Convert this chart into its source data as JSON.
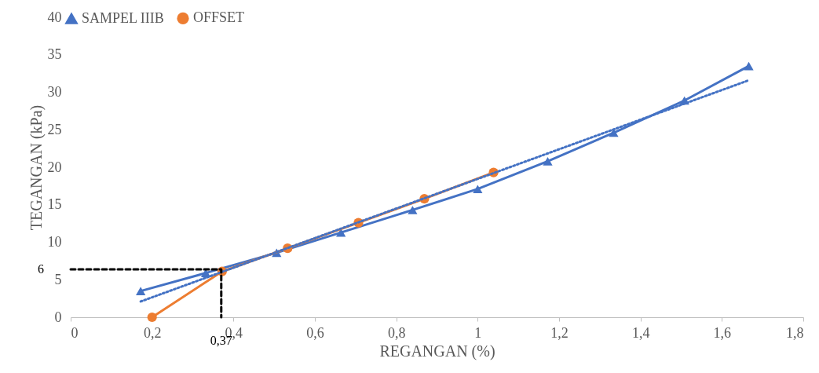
{
  "chart_data": {
    "type": "line",
    "xlabel": "REGANGAN (%)",
    "ylabel": "TEGANGAN (kPa)",
    "xlim": [
      0,
      1.8
    ],
    "xticks": [
      0,
      {
        "value": 0.2,
        "label": "0,2"
      },
      {
        "value": 0.4,
        "label": "0,4"
      },
      {
        "value": 0.6,
        "label": "0,6"
      },
      {
        "value": 0.8,
        "label": "0,8"
      },
      1,
      {
        "value": 1.2,
        "label": "1,2"
      },
      {
        "value": 1.4,
        "label": "1,4"
      },
      {
        "value": 1.6,
        "label": "1,6"
      },
      {
        "value": 1.8,
        "label": "1,8"
      }
    ],
    "ylim": [
      0,
      40
    ],
    "yticks": [
      0,
      5,
      10,
      15,
      20,
      25,
      30,
      35,
      40
    ],
    "grid": false,
    "legend": "top left",
    "series": [
      {
        "name": "SAMPEL IIIB",
        "color": "#4472c4",
        "marker": "triangle",
        "line_style": "solid",
        "x": [
          0.172,
          0.332,
          0.506,
          0.664,
          0.84,
          1.0,
          1.172,
          1.334,
          1.508,
          1.666
        ],
        "values": [
          3.5,
          5.9,
          8.6,
          11.3,
          14.3,
          17.1,
          20.8,
          24.6,
          28.9,
          33.5
        ]
      },
      {
        "name": "OFFSET",
        "color": "#ed7d31",
        "marker": "circle",
        "line_style": "solid",
        "x": [
          0.2,
          0.372,
          0.533,
          0.707,
          0.869,
          1.039
        ],
        "values": [
          0,
          6.1,
          9.2,
          12.6,
          15.8,
          19.3
        ]
      },
      {
        "color": "#4472c4",
        "marker": "none",
        "line_style": "dotted",
        "x": [
          0.172,
          1.666
        ],
        "values": [
          2.1,
          31.6
        ]
      },
      {
        "color": "#000000",
        "marker": "none",
        "line_style": "dashed",
        "x": [
          0,
          0.37,
          0.37
        ],
        "values": [
          6.4,
          6.4,
          0
        ]
      }
    ],
    "annotations": [
      {
        "text": "6",
        "x": 0,
        "y": 6.4
      },
      {
        "text": "0,37",
        "x": 0.37,
        "y": 0
      }
    ]
  }
}
